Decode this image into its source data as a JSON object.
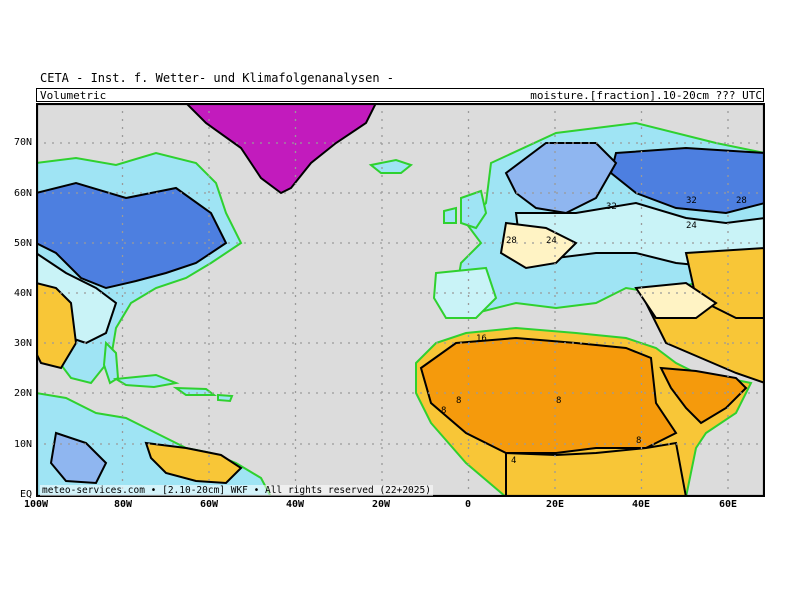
{
  "header": {
    "title": "CETA - Inst. f. Wetter- und Klimafolgenanalysen -",
    "left_label": "Volumetric",
    "right_label": "moisture.[fraction].10-20cm ??? UTC"
  },
  "footer": {
    "credit": "meteo-services.com • [2.10-20cm] WKF • All rights reserved (22+2025)"
  },
  "map": {
    "lat_labels": [
      "70N",
      "60N",
      "50N",
      "40N",
      "30N",
      "20N",
      "10N",
      "EQ"
    ],
    "lon_labels": [
      "100W",
      "80W",
      "60W",
      "40W",
      "20W",
      "0",
      "20E",
      "40E",
      "60E"
    ],
    "contour_labels": [
      "32",
      "32",
      "28",
      "24",
      "24",
      "28",
      "16",
      "8",
      "4",
      "8",
      "8",
      "8"
    ],
    "colors": {
      "ocean": "#dcdcdc",
      "very_wet": "#4d7fe0",
      "wet": "#8fb6f0",
      "medium_wet": "#9fe4f4",
      "medium": "#c9f3f7",
      "moderate_dry": "#fff3c4",
      "dry": "#f8c637",
      "very_dry": "#f59a0c",
      "ice": "#c21bbd",
      "coast": "#2fd12f",
      "grid": "#9a9a9a"
    }
  }
}
